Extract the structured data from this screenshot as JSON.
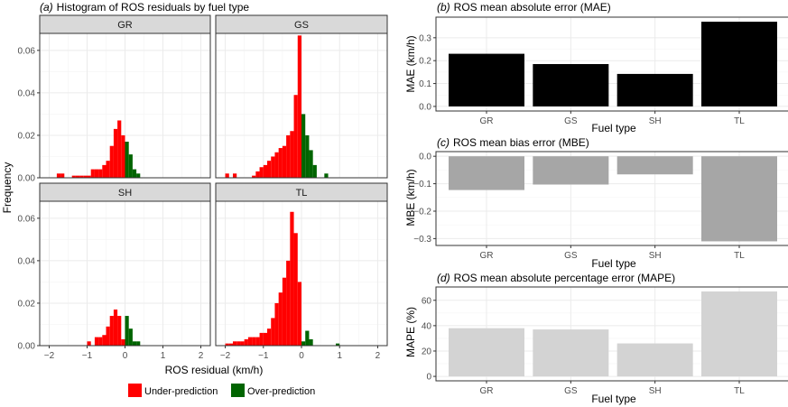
{
  "colors": {
    "under": "#ff0000",
    "over": "#006400",
    "mae": "#000000",
    "mbe": "#a6a6a6",
    "mape": "#d3d3d3"
  },
  "chart_data": [
    {
      "type": "bar",
      "subtype": "histogram-facets",
      "title_tag": "(a)",
      "title": "Histogram of ROS residuals by fuel type",
      "xlabel": "ROS residual (km/h)",
      "ylabel": "Frequency",
      "xlim": [
        -2.25,
        2.25
      ],
      "ylim": [
        0,
        0.068
      ],
      "x_ticks": [
        "−2",
        "−1",
        "0",
        "1",
        "2"
      ],
      "x_tick_values": [
        -2,
        -1,
        0,
        1,
        2
      ],
      "y_ticks": [
        "0.00",
        "0.02",
        "0.04",
        "0.06"
      ],
      "y_tick_values": [
        0,
        0.02,
        0.04,
        0.06
      ],
      "bin_width": 0.1,
      "legend": {
        "position": "bottom",
        "items": [
          "Under-prediction",
          "Over-prediction"
        ]
      },
      "facets": [
        {
          "name": "GR",
          "bins": [
            [
              -1.8,
              0.002,
              "u"
            ],
            [
              -1.7,
              0.002,
              "u"
            ],
            [
              -1.4,
              0.001,
              "u"
            ],
            [
              -1.3,
              0.001,
              "u"
            ],
            [
              -1.2,
              0.001,
              "u"
            ],
            [
              -1.1,
              0.001,
              "u"
            ],
            [
              -1.0,
              0.001,
              "u"
            ],
            [
              -0.9,
              0.004,
              "u"
            ],
            [
              -0.8,
              0.004,
              "u"
            ],
            [
              -0.7,
              0.004,
              "u"
            ],
            [
              -0.6,
              0.006,
              "u"
            ],
            [
              -0.5,
              0.008,
              "u"
            ],
            [
              -0.4,
              0.015,
              "u"
            ],
            [
              -0.3,
              0.023,
              "u"
            ],
            [
              -0.2,
              0.027,
              "u"
            ],
            [
              -0.1,
              0.02,
              "u"
            ],
            [
              0.0,
              0.017,
              "o"
            ],
            [
              0.1,
              0.011,
              "o"
            ],
            [
              0.2,
              0.004,
              "o"
            ],
            [
              0.3,
              0.002,
              "o"
            ]
          ]
        },
        {
          "name": "GS",
          "bins": [
            [
              -2.0,
              0.002,
              "u"
            ],
            [
              -1.8,
              0.002,
              "u"
            ],
            [
              -1.3,
              0.001,
              "u"
            ],
            [
              -1.2,
              0.003,
              "u"
            ],
            [
              -1.1,
              0.005,
              "u"
            ],
            [
              -1.0,
              0.006,
              "u"
            ],
            [
              -0.9,
              0.008,
              "u"
            ],
            [
              -0.8,
              0.01,
              "u"
            ],
            [
              -0.7,
              0.012,
              "u"
            ],
            [
              -0.6,
              0.014,
              "u"
            ],
            [
              -0.5,
              0.015,
              "u"
            ],
            [
              -0.4,
              0.02,
              "u"
            ],
            [
              -0.3,
              0.022,
              "u"
            ],
            [
              -0.2,
              0.039,
              "u"
            ],
            [
              -0.1,
              0.067,
              "u"
            ],
            [
              0.0,
              0.03,
              "o"
            ],
            [
              0.1,
              0.02,
              "o"
            ],
            [
              0.2,
              0.013,
              "o"
            ],
            [
              0.3,
              0.006,
              "o"
            ],
            [
              0.6,
              0.002,
              "o"
            ]
          ]
        },
        {
          "name": "SH",
          "bins": [
            [
              -1.0,
              0.002,
              "u"
            ],
            [
              -0.8,
              0.004,
              "u"
            ],
            [
              -0.7,
              0.004,
              "u"
            ],
            [
              -0.6,
              0.005,
              "u"
            ],
            [
              -0.5,
              0.009,
              "u"
            ],
            [
              -0.4,
              0.014,
              "u"
            ],
            [
              -0.3,
              0.017,
              "u"
            ],
            [
              -0.2,
              0.014,
              "u"
            ],
            [
              -0.1,
              0.003,
              "u"
            ],
            [
              0.0,
              0.014,
              "o"
            ],
            [
              0.1,
              0.008,
              "o"
            ],
            [
              0.2,
              0.002,
              "o"
            ],
            [
              0.3,
              0.002,
              "o"
            ]
          ]
        },
        {
          "name": "TL",
          "bins": [
            [
              -2.0,
              0.001,
              "u"
            ],
            [
              -1.9,
              0.001,
              "u"
            ],
            [
              -1.8,
              0.002,
              "u"
            ],
            [
              -1.7,
              0.002,
              "u"
            ],
            [
              -1.6,
              0.002,
              "u"
            ],
            [
              -1.5,
              0.003,
              "u"
            ],
            [
              -1.4,
              0.004,
              "u"
            ],
            [
              -1.3,
              0.004,
              "u"
            ],
            [
              -1.2,
              0.004,
              "u"
            ],
            [
              -1.1,
              0.006,
              "u"
            ],
            [
              -1.0,
              0.006,
              "u"
            ],
            [
              -0.9,
              0.008,
              "u"
            ],
            [
              -0.8,
              0.013,
              "u"
            ],
            [
              -0.7,
              0.02,
              "u"
            ],
            [
              -0.6,
              0.025,
              "u"
            ],
            [
              -0.5,
              0.032,
              "u"
            ],
            [
              -0.4,
              0.04,
              "u"
            ],
            [
              -0.3,
              0.063,
              "u"
            ],
            [
              -0.2,
              0.053,
              "u"
            ],
            [
              -0.1,
              0.03,
              "u"
            ],
            [
              0.0,
              0.002,
              "o"
            ],
            [
              0.1,
              0.007,
              "o"
            ],
            [
              0.2,
              0.003,
              "o"
            ],
            [
              0.9,
              0.001,
              "o"
            ]
          ]
        }
      ]
    },
    {
      "type": "bar",
      "title_tag": "(b)",
      "title": "ROS mean absolute error (MAE)",
      "categories": [
        "GR",
        "GS",
        "SH",
        "TL"
      ],
      "values": [
        0.23,
        0.185,
        0.142,
        0.37
      ],
      "xlabel": "Fuel type",
      "ylabel": "MAE (km/h)",
      "ylim": [
        -0.02,
        0.39
      ],
      "y_ticks": [
        "0.0",
        "0.1",
        "0.2",
        "0.3"
      ],
      "y_tick_values": [
        0,
        0.1,
        0.2,
        0.3
      ]
    },
    {
      "type": "bar",
      "title_tag": "(c)",
      "title": "ROS mean bias error (MBE)",
      "categories": [
        "GR",
        "GS",
        "SH",
        "TL"
      ],
      "values": [
        -0.123,
        -0.103,
        -0.066,
        -0.31
      ],
      "xlabel": "Fuel type",
      "ylabel": "MBE (km/h)",
      "ylim": [
        -0.325,
        0.017
      ],
      "y_ticks": [
        "−0.3",
        "−0.2",
        "−0.1",
        "0.0"
      ],
      "y_tick_values": [
        -0.3,
        -0.2,
        -0.1,
        0
      ]
    },
    {
      "type": "bar",
      "title_tag": "(d)",
      "title": "ROS mean absolute percentage error (MAPE)",
      "categories": [
        "GR",
        "GS",
        "SH",
        "TL"
      ],
      "values": [
        38,
        37,
        26,
        67
      ],
      "xlabel": "Fuel type",
      "ylabel": "MAPE (%)",
      "ylim": [
        -3.5,
        70.5
      ],
      "y_ticks": [
        "0",
        "20",
        "40",
        "60"
      ],
      "y_tick_values": [
        0,
        20,
        40,
        60
      ]
    }
  ]
}
